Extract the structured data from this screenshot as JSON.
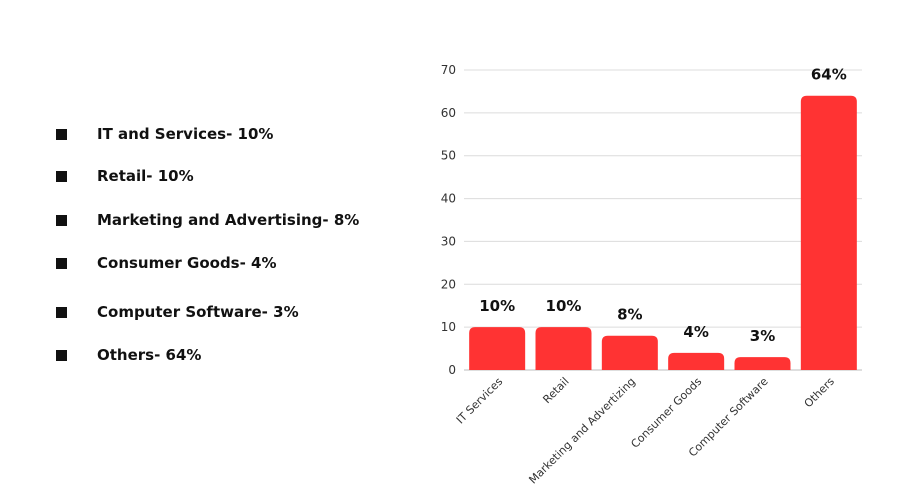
{
  "legend": {
    "items": [
      {
        "label": "IT and Services- 10%"
      },
      {
        "label": "Retail- 10%"
      },
      {
        "label": "Marketing and Advertising- 8%"
      },
      {
        "label": "Consumer Goods- 4%"
      },
      {
        "label": "Computer Software- 3%"
      },
      {
        "label": "Others- 64%"
      }
    ]
  },
  "chart_data": {
    "type": "bar",
    "categories": [
      "IT Services",
      "Retail",
      "Marketing and Advertizing",
      "Consumer Goods",
      "Computer Software",
      "Others"
    ],
    "values": [
      10,
      10,
      8,
      4,
      3,
      64
    ],
    "data_labels": [
      "10%",
      "10%",
      "8%",
      "4%",
      "3%",
      "64%"
    ],
    "title": "",
    "xlabel": "",
    "ylabel": "",
    "ylim": [
      0,
      70
    ],
    "yticks": [
      0,
      10,
      20,
      30,
      40,
      50,
      60,
      70
    ],
    "grid": true,
    "bar_color": "#ff3333"
  }
}
